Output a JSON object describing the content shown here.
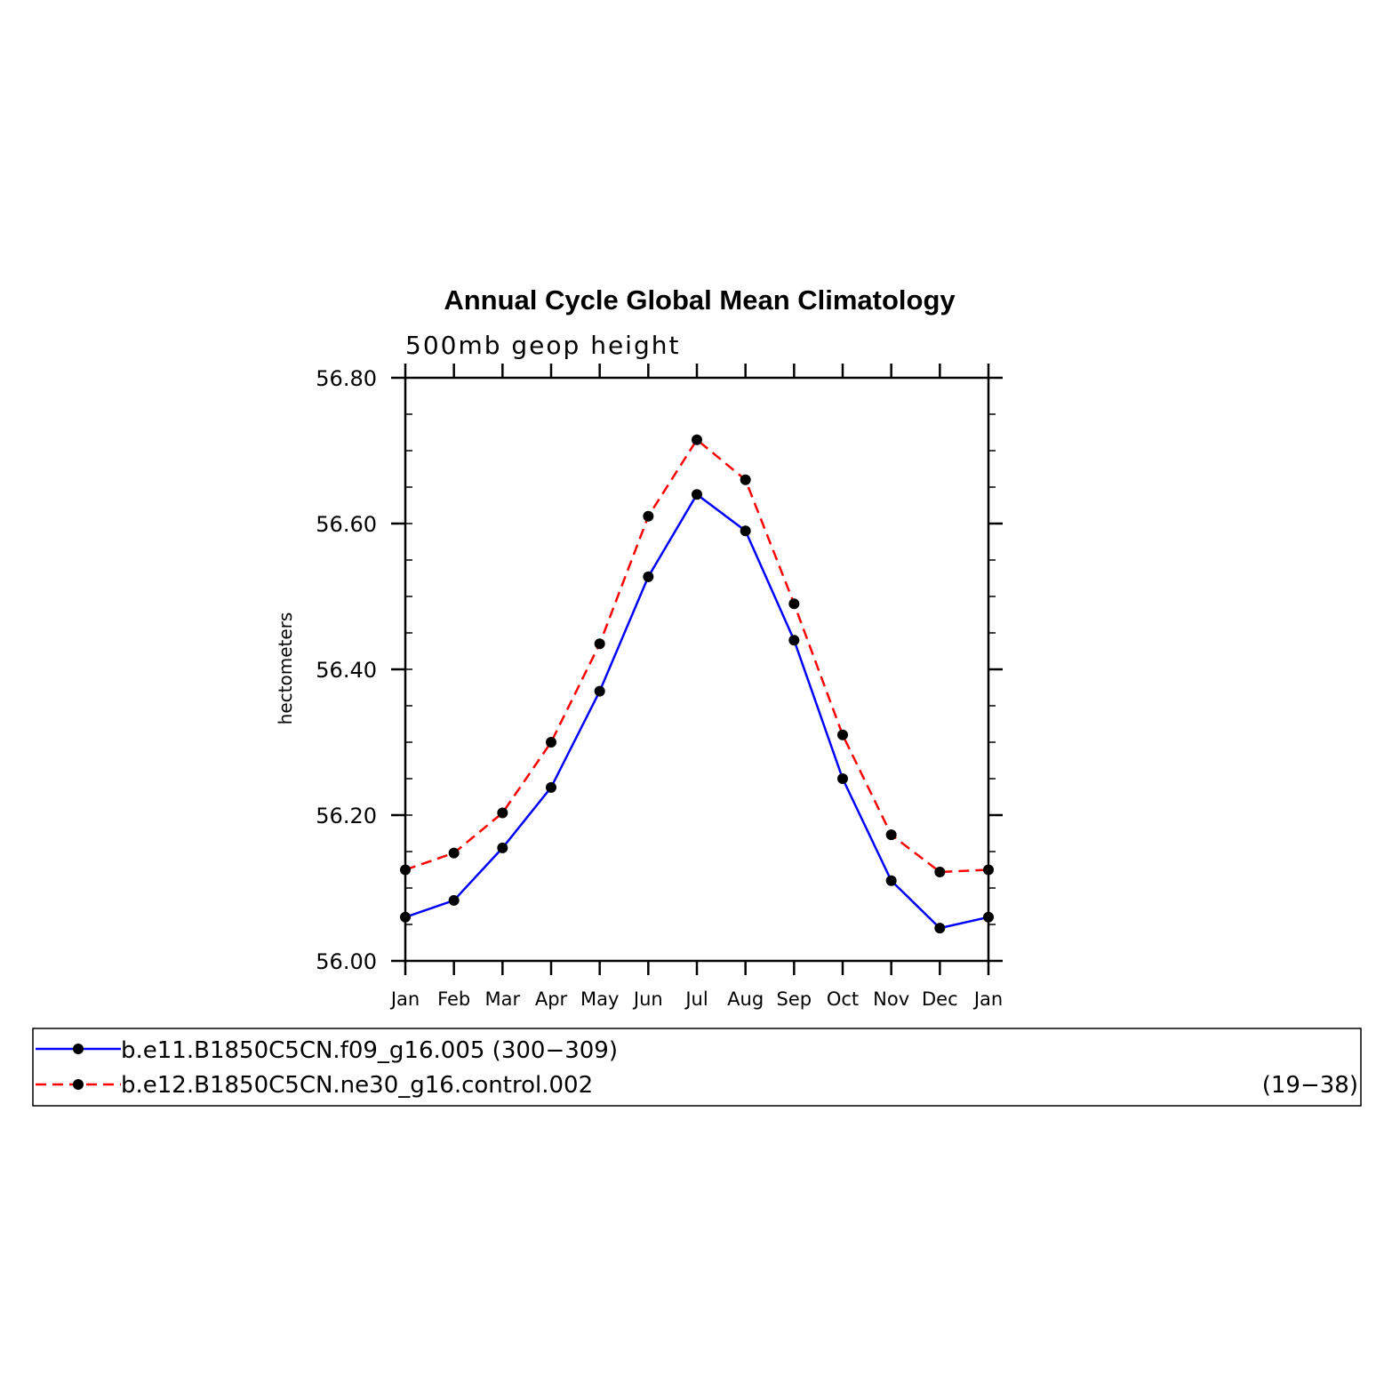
{
  "chart_data": {
    "type": "line",
    "title": "Annual Cycle Global Mean Climatology",
    "subtitle": "500mb geop height",
    "xlabel": "",
    "ylabel": "hectometers",
    "categories": [
      "Jan",
      "Feb",
      "Mar",
      "Apr",
      "May",
      "Jun",
      "Jul",
      "Aug",
      "Sep",
      "Oct",
      "Nov",
      "Dec",
      "Jan"
    ],
    "ylim": [
      56.0,
      56.8
    ],
    "yticks": [
      "56.00",
      "56.20",
      "56.40",
      "56.60",
      "56.80"
    ],
    "yminor_step": 0.05,
    "grid": false,
    "legend_position": "bottom",
    "series": [
      {
        "name": "b.e11.B1850C5CN.f09_g16.005",
        "years": "(300−309)",
        "color": "#0000ff",
        "dash": "solid",
        "values": [
          56.06,
          56.083,
          56.155,
          56.238,
          56.37,
          56.527,
          56.64,
          56.59,
          56.44,
          56.25,
          56.11,
          56.045,
          56.06
        ]
      },
      {
        "name": "b.e12.B1850C5CN.ne30_g16.control.002",
        "years": "(19−38)",
        "color": "#ff0000",
        "dash": "dashed",
        "values": [
          56.125,
          56.148,
          56.203,
          56.3,
          56.435,
          56.61,
          56.715,
          56.66,
          56.49,
          56.31,
          56.173,
          56.122,
          56.125
        ]
      }
    ]
  }
}
